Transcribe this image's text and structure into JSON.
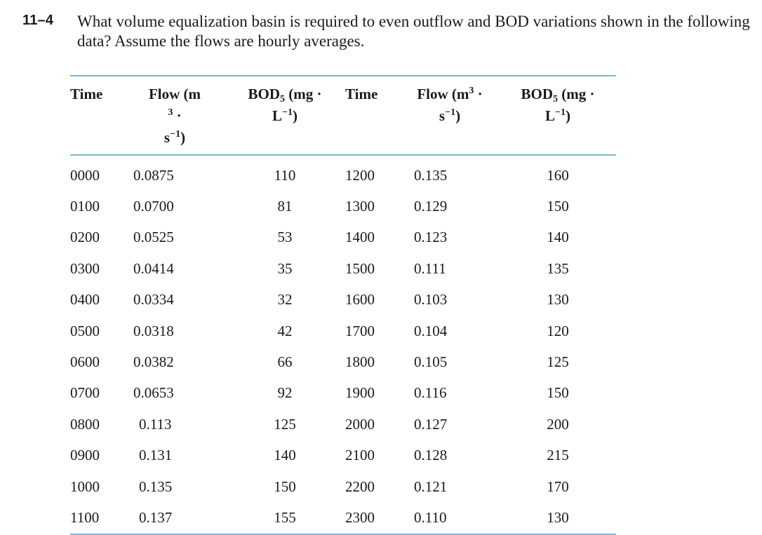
{
  "problem": {
    "number": "11–4",
    "text": "What volume equalization basin is required to even outflow and BOD variations shown in the following data? Assume the flows are hourly averages."
  },
  "table": {
    "headers": {
      "time": "Time",
      "flow_line1": "Flow (m",
      "flow_sup": "3",
      "flow_line1_tail": " ·",
      "flow_line2": "s",
      "flow_line2_sup": "−1",
      "flow_line2_tail": ")",
      "bod_line1": "BOD",
      "bod_sub": "5",
      "bod_line1_tail": " (mg ·",
      "bod_line2": "L",
      "bod_line2_sup": "−1",
      "bod_line2_tail": ")"
    },
    "rows": [
      [
        "0000",
        "0.0875",
        "110",
        "1200",
        "0.135",
        "160"
      ],
      [
        "0100",
        "0.0700",
        "81",
        "1300",
        "0.129",
        "150"
      ],
      [
        "0200",
        "0.0525",
        "53",
        "1400",
        "0.123",
        "140"
      ],
      [
        "0300",
        "0.0414",
        "35",
        "1500",
        "0.111",
        "135"
      ],
      [
        "0400",
        "0.0334",
        "32",
        "1600",
        "0.103",
        "130"
      ],
      [
        "0500",
        "0.0318",
        "42",
        "1700",
        "0.104",
        "120"
      ],
      [
        "0600",
        "0.0382",
        "66",
        "1800",
        "0.105",
        "125"
      ],
      [
        "0700",
        "0.0653",
        "92",
        "1900",
        "0.116",
        "150"
      ],
      [
        "0800",
        "0.113",
        "125",
        "2000",
        "0.127",
        "200"
      ],
      [
        "0900",
        "0.131",
        "140",
        "2100",
        "0.128",
        "215"
      ],
      [
        "1000",
        "0.135",
        "150",
        "2200",
        "0.121",
        "170"
      ],
      [
        "1100",
        "0.137",
        "155",
        "2300",
        "0.110",
        "130"
      ]
    ]
  }
}
